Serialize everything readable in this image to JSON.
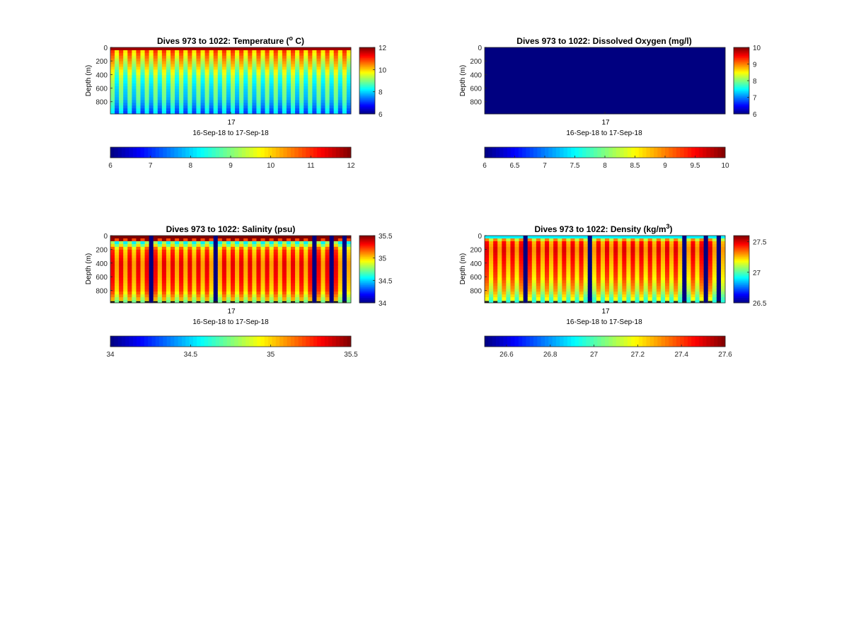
{
  "figure": {
    "subtitle_range": "16-Sep-18 to 17-Sep-18"
  },
  "chart_data": [
    {
      "type": "heatmap",
      "id": "temperature",
      "title_main": "Dives 973 to 1022: Temperature (",
      "title_sup": "o",
      "title_tail": " C)",
      "ylabel": "Depth (m)",
      "xlabel": "16-Sep-18 to 17-Sep-18",
      "x_ticks": [
        "17"
      ],
      "y_ticks": [
        0,
        200,
        400,
        600,
        800
      ],
      "ylim": [
        0,
        980
      ],
      "clim": [
        6,
        12
      ],
      "side_colorbar_ticks": [
        12,
        10,
        8,
        6
      ],
      "bottom_colorbar_ticks": [
        6,
        7,
        8,
        9,
        10,
        11,
        12
      ],
      "profile_count": 56,
      "pattern": "alternating",
      "surface_value": 11.8,
      "depth_profile": [
        [
          0,
          11.8
        ],
        [
          50,
          11.0
        ],
        [
          150,
          10.6
        ],
        [
          300,
          10.0
        ],
        [
          450,
          9.4
        ],
        [
          600,
          9.1
        ],
        [
          750,
          8.9
        ],
        [
          850,
          8.6
        ],
        [
          950,
          8.2
        ]
      ],
      "gaps": [],
      "bottom_markers": false
    },
    {
      "type": "heatmap",
      "id": "oxygen",
      "title_main": "Dives 973 to 1022: Dissolved Oxygen (mg/l)",
      "title_sup": "",
      "title_tail": "",
      "ylabel": "Depth (m)",
      "xlabel": "16-Sep-18 to 17-Sep-18",
      "x_ticks": [
        "17"
      ],
      "y_ticks": [
        0,
        200,
        400,
        600,
        800
      ],
      "ylim": [
        0,
        980
      ],
      "clim": [
        6,
        10
      ],
      "side_colorbar_ticks": [
        10,
        9,
        8,
        7,
        6
      ],
      "bottom_colorbar_ticks": [
        6,
        6.5,
        7,
        7.5,
        8,
        8.5,
        9,
        9.5,
        10
      ],
      "profile_count": 56,
      "pattern": "uniform",
      "surface_value": 5.0,
      "depth_profile": [
        [
          0,
          5.0
        ],
        [
          980,
          5.0
        ]
      ],
      "gaps": [],
      "bottom_markers": false
    },
    {
      "type": "heatmap",
      "id": "salinity",
      "title_main": "Dives 973 to 1022: Salinity (psu)",
      "title_sup": "",
      "title_tail": "",
      "ylabel": "Depth (m)",
      "xlabel": "16-Sep-18 to 17-Sep-18",
      "x_ticks": [
        "17"
      ],
      "y_ticks": [
        0,
        200,
        400,
        600,
        800
      ],
      "ylim": [
        0,
        980
      ],
      "clim": [
        34,
        35.5
      ],
      "side_colorbar_ticks": [
        35.5,
        35,
        34.5,
        34
      ],
      "bottom_colorbar_ticks": [
        34,
        34.5,
        35,
        35.5
      ],
      "profile_count": 56,
      "pattern": "alternating",
      "surface_value": 35.55,
      "depth_profile": [
        [
          0,
          35.55
        ],
        [
          60,
          35.5
        ],
        [
          100,
          34.8
        ],
        [
          200,
          35.25
        ],
        [
          400,
          35.35
        ],
        [
          600,
          35.32
        ],
        [
          800,
          35.25
        ],
        [
          900,
          35.1
        ],
        [
          960,
          35.0
        ]
      ],
      "gaps": [
        9,
        24,
        47,
        51,
        54
      ],
      "bottom_markers": true
    },
    {
      "type": "heatmap",
      "id": "density",
      "title_main": "Dives 973 to 1022: Density (kg/m",
      "title_sup": "3",
      "title_tail": ")",
      "ylabel": "Depth (m)",
      "xlabel": "16-Sep-18 to 17-Sep-18",
      "x_ticks": [
        "17"
      ],
      "y_ticks": [
        0,
        200,
        400,
        600,
        800
      ],
      "ylim": [
        0,
        980
      ],
      "clim": [
        26.5,
        27.6
      ],
      "side_colorbar_ticks": [
        27.5,
        27,
        26.5
      ],
      "bottom_colorbar_ticks": [
        26.6,
        26.8,
        27,
        27.2,
        27.4,
        27.6
      ],
      "profile_count": 56,
      "pattern": "alternating",
      "surface_value": 26.9,
      "depth_profile": [
        [
          0,
          26.9
        ],
        [
          80,
          27.45
        ],
        [
          200,
          27.5
        ],
        [
          400,
          27.45
        ],
        [
          600,
          27.4
        ],
        [
          800,
          27.3
        ],
        [
          900,
          27.2
        ],
        [
          960,
          27.15
        ]
      ],
      "gaps": [
        9,
        24,
        46,
        51,
        54
      ],
      "bottom_markers": true
    }
  ]
}
